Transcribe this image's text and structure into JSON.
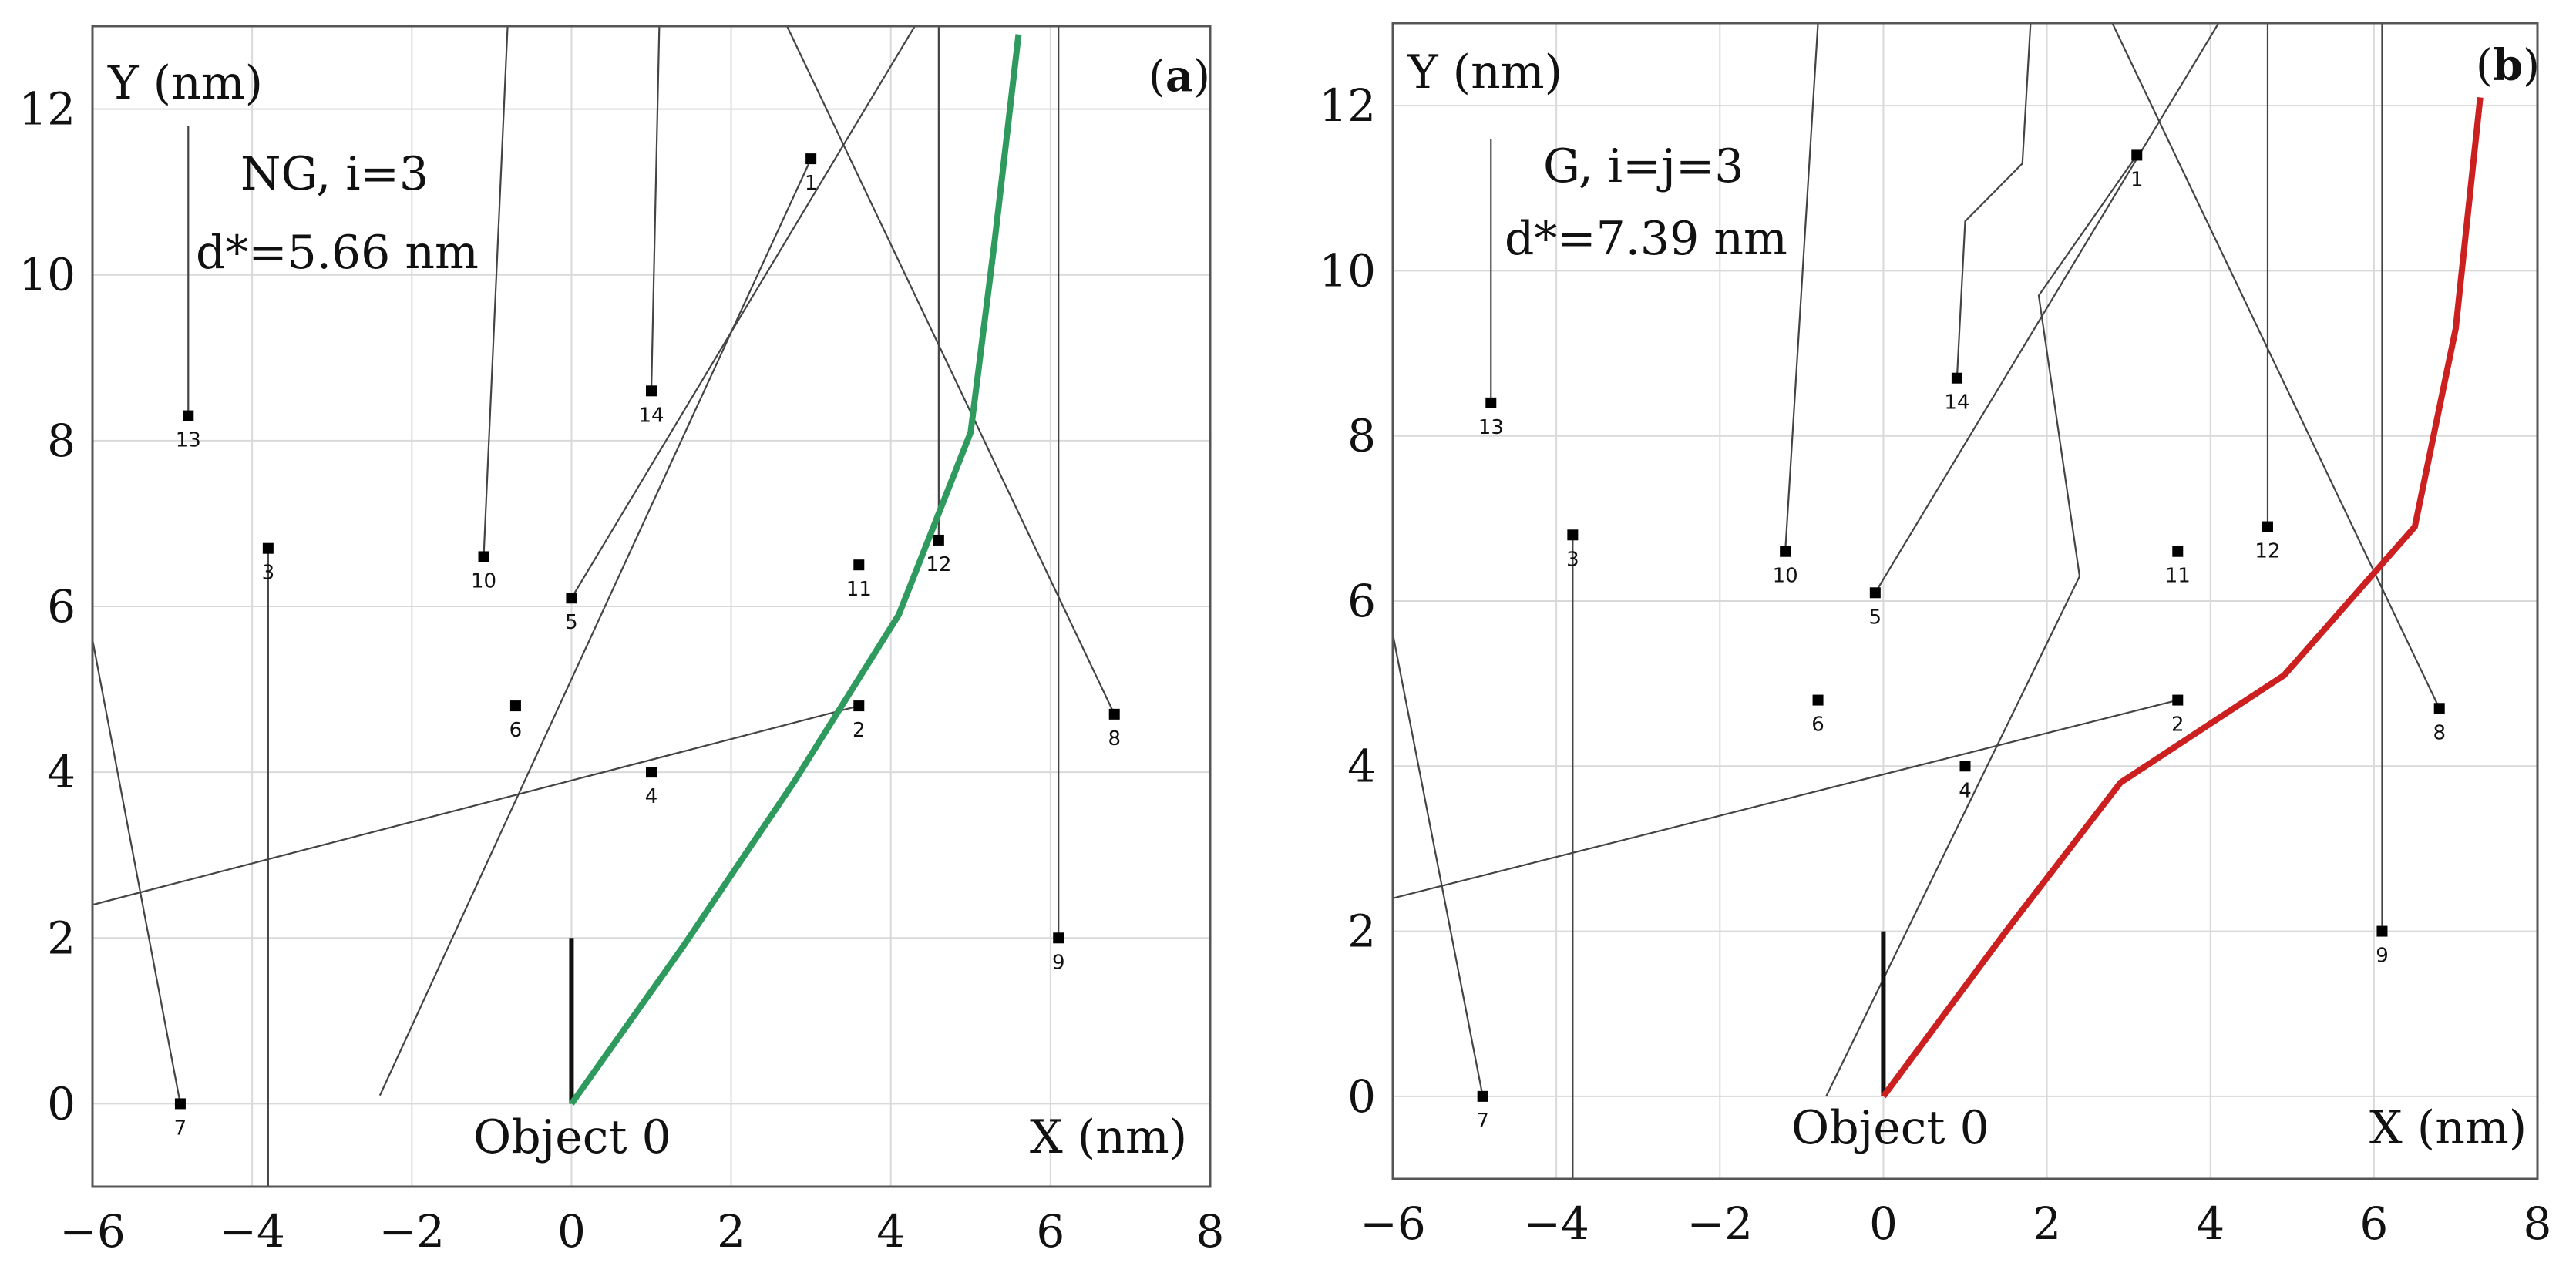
{
  "chart_data": [
    {
      "type": "scatter",
      "panel_label": "a",
      "annotation": {
        "line1": "NG, i=3",
        "line2": "d*=5.66 nm"
      },
      "xlabel": "X (nm)",
      "ylabel": "Y (nm)",
      "xlim": [
        -6,
        8
      ],
      "ylim": [
        -1,
        13
      ],
      "xticks": [
        -6,
        -4,
        -2,
        0,
        2,
        4,
        6,
        8
      ],
      "yticks": [
        0,
        2,
        4,
        6,
        8,
        10,
        12
      ],
      "grid": true,
      "origin_label": "Object 0",
      "path_color": "#2e9a5e",
      "objects": [
        {
          "id": "1",
          "x": 3.0,
          "y": 11.4,
          "path": [
            [
              3.0,
              11.4
            ],
            [
              -2.4,
              0.1
            ]
          ]
        },
        {
          "id": "2",
          "x": 3.6,
          "y": 4.8,
          "path": [
            [
              3.6,
              4.8
            ],
            [
              -6.0,
              2.4
            ]
          ]
        },
        {
          "id": "3",
          "x": -3.8,
          "y": 6.7,
          "path": [
            [
              -3.8,
              6.7
            ],
            [
              -3.8,
              -1.0
            ]
          ]
        },
        {
          "id": "4",
          "x": 1.0,
          "y": 4.0,
          "path": []
        },
        {
          "id": "5",
          "x": 0.0,
          "y": 6.1,
          "path": [
            [
              0.0,
              6.1
            ],
            [
              4.3,
              13.0
            ]
          ]
        },
        {
          "id": "6",
          "x": -0.7,
          "y": 4.8,
          "path": []
        },
        {
          "id": "7",
          "x": -4.9,
          "y": 0.0,
          "path": [
            [
              -4.9,
              0.0
            ],
            [
              -6.0,
              5.6
            ]
          ]
        },
        {
          "id": "8",
          "x": 6.8,
          "y": 4.7,
          "path": [
            [
              6.8,
              4.7
            ],
            [
              2.7,
              13.0
            ]
          ]
        },
        {
          "id": "9",
          "x": 6.1,
          "y": 2.0,
          "path": [
            [
              6.1,
              2.0
            ],
            [
              6.1,
              13.0
            ]
          ]
        },
        {
          "id": "10",
          "x": -1.1,
          "y": 6.6,
          "path": [
            [
              -1.1,
              6.6
            ],
            [
              -0.8,
              13.0
            ]
          ]
        },
        {
          "id": "11",
          "x": 3.6,
          "y": 6.5,
          "path": []
        },
        {
          "id": "12",
          "x": 4.6,
          "y": 6.8,
          "path": [
            [
              4.6,
              6.8
            ],
            [
              4.6,
              13.0
            ]
          ]
        },
        {
          "id": "13",
          "x": -4.8,
          "y": 8.3,
          "path": [
            [
              -4.8,
              8.3
            ],
            [
              -4.8,
              11.8
            ]
          ]
        },
        {
          "id": "14",
          "x": 1.0,
          "y": 8.6,
          "path": [
            [
              1.0,
              8.6
            ],
            [
              1.1,
              13.0
            ]
          ]
        }
      ],
      "path_points": [
        [
          0.0,
          0.0
        ],
        [
          1.4,
          1.9
        ],
        [
          2.8,
          3.9
        ],
        [
          4.1,
          5.9
        ],
        [
          5.0,
          8.1
        ],
        [
          5.3,
          10.4
        ],
        [
          5.6,
          12.9
        ]
      ]
    },
    {
      "type": "scatter",
      "panel_label": "b",
      "annotation": {
        "line1": "G, i=j=3",
        "line2": "d*=7.39 nm"
      },
      "xlabel": "X (nm)",
      "ylabel": "Y (nm)",
      "xlim": [
        -6,
        8
      ],
      "ylim": [
        -1,
        13
      ],
      "xticks": [
        -6,
        -4,
        -2,
        0,
        2,
        4,
        6,
        8
      ],
      "yticks": [
        0,
        2,
        4,
        6,
        8,
        10,
        12
      ],
      "grid": true,
      "origin_label": "Object 0",
      "path_color": "#cc1f1f",
      "objects": [
        {
          "id": "1",
          "x": 3.1,
          "y": 11.4,
          "path": [
            [
              3.1,
              11.4
            ],
            [
              1.9,
              9.7
            ],
            [
              2.4,
              6.3
            ],
            [
              -0.7,
              0.0
            ]
          ]
        },
        {
          "id": "2",
          "x": 3.6,
          "y": 4.8,
          "path": [
            [
              3.6,
              4.8
            ],
            [
              -6.0,
              2.4
            ]
          ]
        },
        {
          "id": "3",
          "x": -3.8,
          "y": 6.8,
          "path": [
            [
              -3.8,
              6.8
            ],
            [
              -3.8,
              -1.0
            ]
          ]
        },
        {
          "id": "4",
          "x": 1.0,
          "y": 4.0,
          "path": []
        },
        {
          "id": "5",
          "x": -0.1,
          "y": 6.1,
          "path": [
            [
              -0.1,
              6.1
            ],
            [
              4.1,
              13.0
            ]
          ]
        },
        {
          "id": "6",
          "x": -0.8,
          "y": 4.8,
          "path": []
        },
        {
          "id": "7",
          "x": -4.9,
          "y": 0.0,
          "path": [
            [
              -4.9,
              0.0
            ],
            [
              -6.0,
              5.6
            ]
          ]
        },
        {
          "id": "8",
          "x": 6.8,
          "y": 4.7,
          "path": [
            [
              6.8,
              4.7
            ],
            [
              2.8,
              13.0
            ]
          ]
        },
        {
          "id": "9",
          "x": 6.1,
          "y": 2.0,
          "path": [
            [
              6.1,
              2.0
            ],
            [
              6.1,
              13.0
            ]
          ]
        },
        {
          "id": "10",
          "x": -1.2,
          "y": 6.6,
          "path": [
            [
              -1.2,
              6.6
            ],
            [
              -0.8,
              13.0
            ]
          ]
        },
        {
          "id": "11",
          "x": 3.6,
          "y": 6.6,
          "path": []
        },
        {
          "id": "12",
          "x": 4.7,
          "y": 6.9,
          "path": [
            [
              4.7,
              6.9
            ],
            [
              4.7,
              13.0
            ]
          ]
        },
        {
          "id": "13",
          "x": -4.8,
          "y": 8.4,
          "path": [
            [
              -4.8,
              8.4
            ],
            [
              -4.8,
              11.6
            ]
          ]
        },
        {
          "id": "14",
          "x": 0.9,
          "y": 8.7,
          "path": [
            [
              0.9,
              8.7
            ],
            [
              1.0,
              10.6
            ],
            [
              1.7,
              11.3
            ],
            [
              1.8,
              13.0
            ]
          ]
        }
      ],
      "path_points": [
        [
          0.0,
          0.0
        ],
        [
          1.5,
          2.0
        ],
        [
          2.9,
          3.8
        ],
        [
          4.9,
          5.1
        ],
        [
          6.5,
          6.9
        ],
        [
          7.0,
          9.3
        ],
        [
          7.3,
          12.1
        ]
      ]
    }
  ]
}
